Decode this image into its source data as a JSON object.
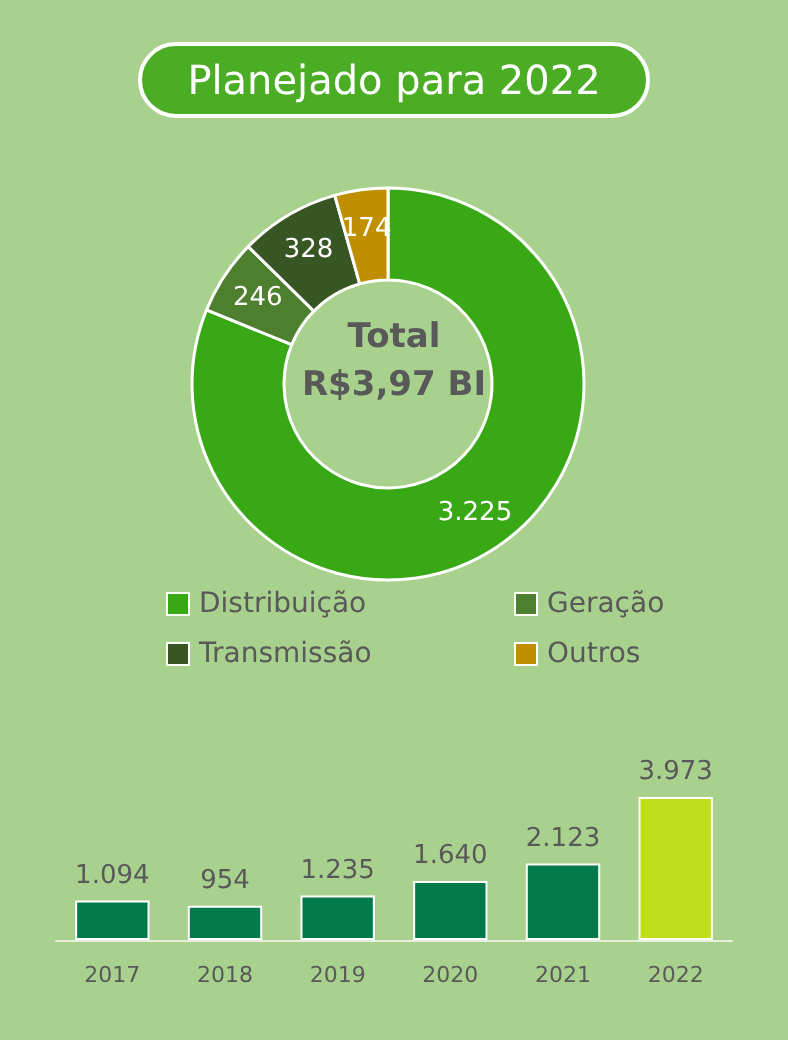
{
  "chart_data": [
    {
      "type": "donut",
      "title": "Planejado para 2022",
      "annotations": [
        "Total",
        "R$3,97 BI"
      ],
      "categories": [
        "Distribuição",
        "Geração",
        "Transmissão",
        "Outros"
      ],
      "values": [
        3225,
        246,
        328,
        174
      ],
      "value_labels": [
        "3.225",
        "246",
        "328",
        "174"
      ],
      "colors": [
        "#38a915",
        "#4e7f2f",
        "#375623",
        "#bf8f00"
      ],
      "legend": "bottom"
    },
    {
      "type": "bar",
      "categories": [
        "2017",
        "2018",
        "2019",
        "2020",
        "2021",
        "2022"
      ],
      "values": [
        1094,
        954,
        1235,
        1640,
        2123,
        3973
      ],
      "value_labels": [
        "1.094",
        "954",
        "1.235",
        "1.640",
        "2.123",
        "3.973"
      ],
      "colors": [
        "#007a4a",
        "#007a4a",
        "#007a4a",
        "#007a4a",
        "#007a4a",
        "#bede1e"
      ]
    }
  ]
}
